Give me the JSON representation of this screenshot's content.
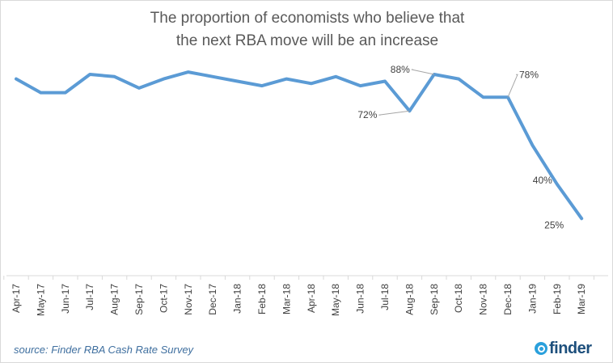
{
  "chart_data": {
    "type": "line",
    "title_line1": "The proportion of economists who believe that",
    "title_line2": "the next RBA move will be an increase",
    "x": [
      "Apr-17",
      "May-17",
      "Jun-17",
      "Jul-17",
      "Aug-17",
      "Sep-17",
      "Oct-17",
      "Nov-17",
      "Dec-17",
      "Jan-18",
      "Feb-18",
      "Mar-18",
      "Apr-18",
      "May-18",
      "Jun-18",
      "Jul-18",
      "Aug-18",
      "Sep-18",
      "Oct-18",
      "Nov-18",
      "Dec-18",
      "Jan-19",
      "Feb-19",
      "Mar-19"
    ],
    "series": [
      {
        "values": [
          86,
          80,
          80,
          88,
          87,
          82,
          86,
          89,
          87,
          85,
          83,
          86,
          84,
          87,
          83,
          85,
          72,
          88,
          86,
          78,
          78,
          57,
          40,
          25
        ]
      }
    ],
    "ylim": [
      0,
      100
    ],
    "grid": false,
    "legend": "none",
    "line_color": "#5b9bd5",
    "annotations": [
      {
        "index": 16,
        "text": "72%"
      },
      {
        "index": 17,
        "text": "88%"
      },
      {
        "index": 20,
        "text": "78%"
      },
      {
        "index": 22,
        "text": "40%"
      },
      {
        "index": 23,
        "text": "25%"
      }
    ]
  },
  "footer": {
    "source": "source: Finder RBA Cash Rate Survey",
    "logo_text": "finder",
    "logo_icon": "magnifier-icon"
  }
}
